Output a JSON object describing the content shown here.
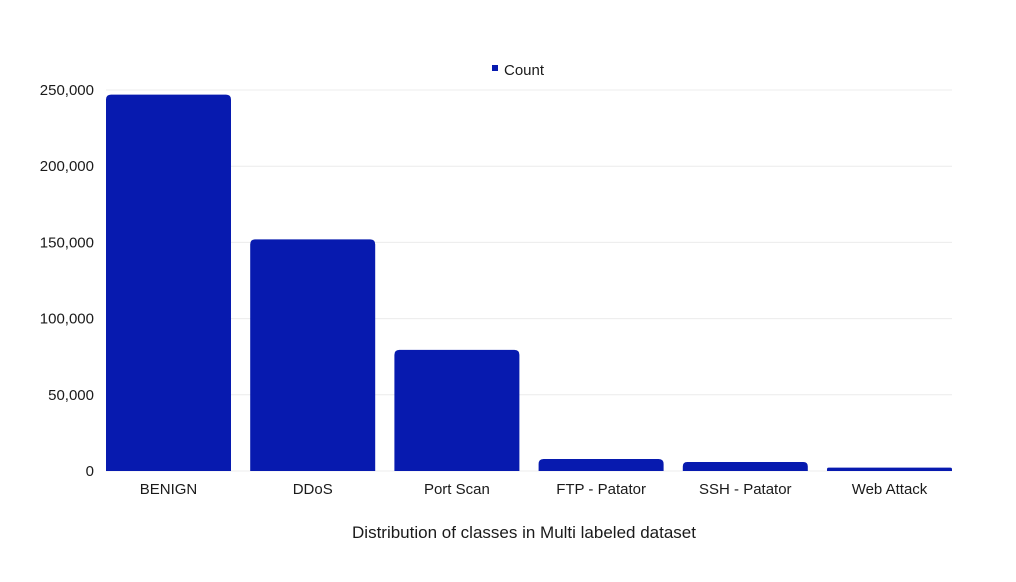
{
  "chart_data": {
    "type": "bar",
    "categories": [
      "BENIGN",
      "DDoS",
      "Port Scan",
      "FTP - Patator",
      "SSH - Patator",
      "Web Attack"
    ],
    "series": [
      {
        "name": "Count",
        "values": [
          247000,
          152000,
          79500,
          7900,
          5900,
          2200
        ],
        "color": "#071aaf"
      }
    ],
    "xlabel": "Distribution of classes in Multi labeled dataset",
    "ylabel": "",
    "ylim": [
      0,
      250000
    ],
    "yticks": [
      0,
      50000,
      100000,
      150000,
      200000,
      250000
    ],
    "ytick_labels": [
      "0",
      "50,000",
      "100,000",
      "150,000",
      "200,000",
      "250,000"
    ],
    "grid": true,
    "legend_position": "top-center"
  }
}
